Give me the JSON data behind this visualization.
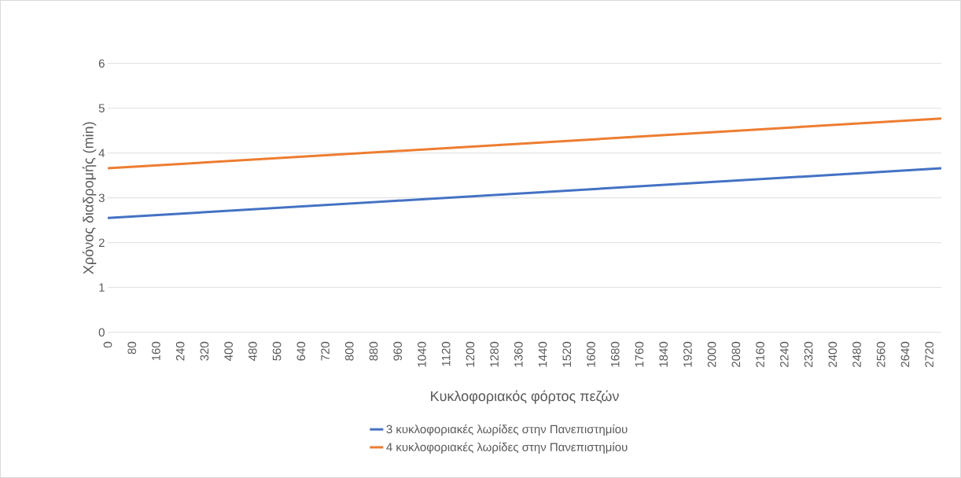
{
  "chart_data": {
    "type": "line",
    "xlabel": "Κυκλοφοριακός φόρτος πεζών",
    "ylabel": "Χρόνος διαδρομής (min)",
    "x": [
      0,
      2760
    ],
    "series": [
      {
        "name": "3 κυκλοφοριακές λωρίδες στην Πανεπιστημίου",
        "color": "#4472c4",
        "values": [
          2.55,
          3.66
        ]
      },
      {
        "name": "4 κυκλοφοριακές λωρίδες στην Πανεπιστημίου",
        "color": "#ed7d31",
        "values": [
          3.66,
          4.77
        ]
      }
    ],
    "xlim": [
      0,
      2760
    ],
    "xticks": [
      0,
      80,
      160,
      240,
      320,
      400,
      480,
      560,
      640,
      720,
      800,
      880,
      960,
      1040,
      1120,
      1200,
      1280,
      1360,
      1440,
      1520,
      1600,
      1680,
      1760,
      1840,
      1920,
      2000,
      2080,
      2160,
      2240,
      2320,
      2400,
      2480,
      2560,
      2640,
      2720
    ],
    "ylim": [
      0,
      6
    ],
    "yticks": [
      0,
      1,
      2,
      3,
      4,
      5,
      6
    ],
    "grid": "y",
    "legend": "bottom",
    "marker": "none",
    "line_style": "solid"
  }
}
